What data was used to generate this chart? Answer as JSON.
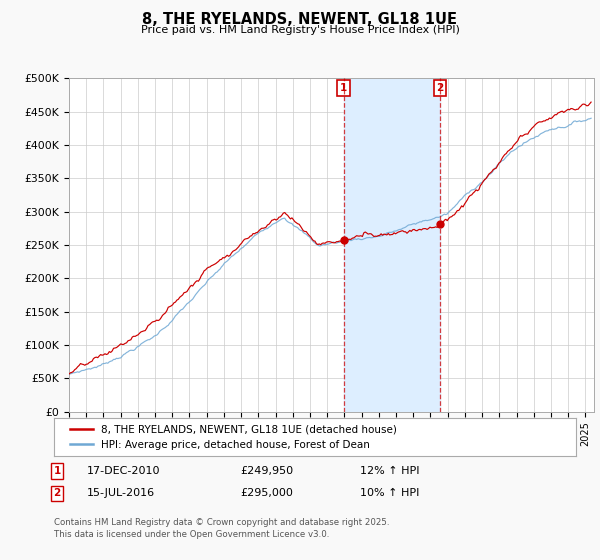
{
  "title": "8, THE RYELANDS, NEWENT, GL18 1UE",
  "subtitle": "Price paid vs. HM Land Registry's House Price Index (HPI)",
  "ylabel_ticks": [
    "£0",
    "£50K",
    "£100K",
    "£150K",
    "£200K",
    "£250K",
    "£300K",
    "£350K",
    "£400K",
    "£450K",
    "£500K"
  ],
  "ytick_values": [
    0,
    50000,
    100000,
    150000,
    200000,
    250000,
    300000,
    350000,
    400000,
    450000,
    500000
  ],
  "ylim": [
    0,
    500000
  ],
  "xlim_start": 1995.0,
  "xlim_end": 2025.5,
  "hpi_color": "#6fa8d4",
  "price_color": "#cc0000",
  "shade_color": "#ddeeff",
  "marker1_x": 2010.96,
  "marker2_x": 2016.54,
  "legend_line1": "8, THE RYELANDS, NEWENT, GL18 1UE (detached house)",
  "legend_line2": "HPI: Average price, detached house, Forest of Dean",
  "annotation1_date": "17-DEC-2010",
  "annotation1_price": "£249,950",
  "annotation1_hpi": "12% ↑ HPI",
  "annotation2_date": "15-JUL-2016",
  "annotation2_price": "£295,000",
  "annotation2_hpi": "10% ↑ HPI",
  "footer": "Contains HM Land Registry data © Crown copyright and database right 2025.\nThis data is licensed under the Open Government Licence v3.0.",
  "background_color": "#f9f9f9",
  "plot_bg_color": "#ffffff"
}
